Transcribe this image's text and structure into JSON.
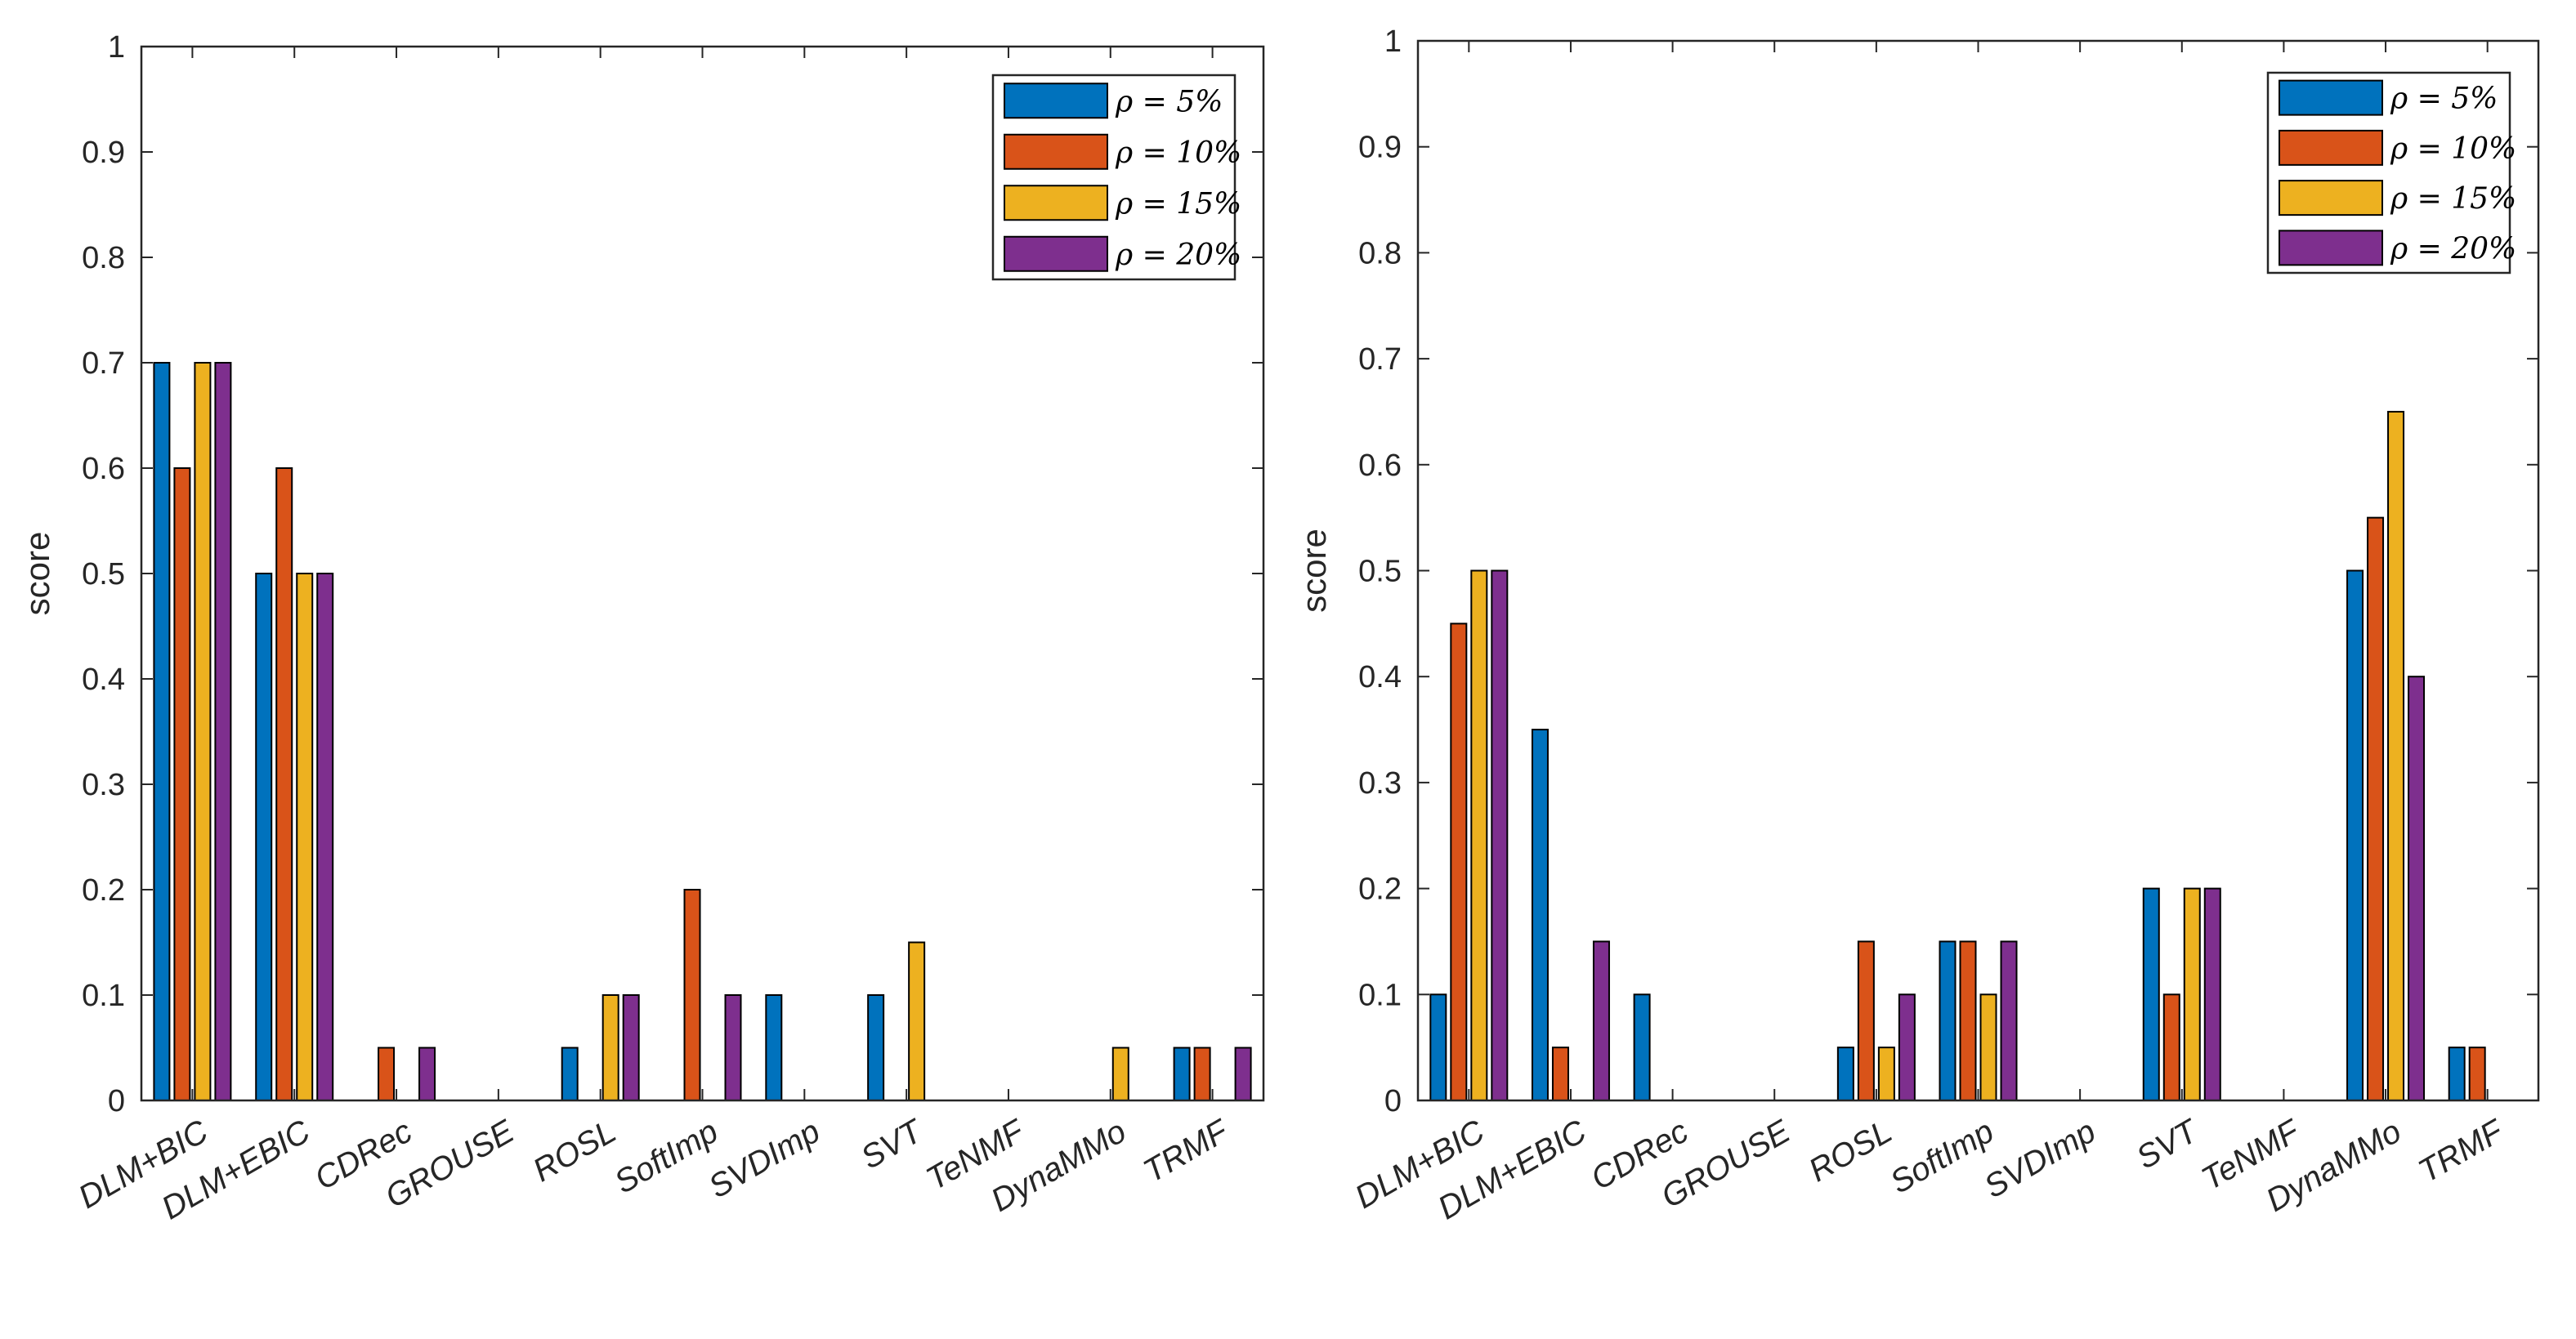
{
  "chart_data": [
    {
      "type": "bar",
      "ylabel": "score",
      "xlabel": "",
      "ylim": [
        0,
        1
      ],
      "yticks": [
        "0",
        "0.1",
        "0.2",
        "0.3",
        "0.4",
        "0.5",
        "0.6",
        "0.7",
        "0.8",
        "0.9",
        "1"
      ],
      "categories": [
        "DLM+BIC",
        "DLM+EBIC",
        "CDRec",
        "GROUSE",
        "ROSL",
        "SoftImp",
        "SVDImp",
        "SVT",
        "TeNMF",
        "DynaMMo",
        "TRMF"
      ],
      "legend_position": "top-right",
      "series": [
        {
          "name": "ρ = 5%",
          "color": "#0072BD",
          "values": [
            0.7,
            0.5,
            0,
            0,
            0.05,
            0,
            0.1,
            0.1,
            0,
            0,
            0.05
          ]
        },
        {
          "name": "ρ = 10%",
          "color": "#D95319",
          "values": [
            0.6,
            0.6,
            0.05,
            0,
            0,
            0.2,
            0,
            0,
            0,
            0,
            0.05
          ]
        },
        {
          "name": "ρ = 15%",
          "color": "#EDB120",
          "values": [
            0.7,
            0.5,
            0,
            0,
            0.1,
            0,
            0,
            0.15,
            0,
            0.05,
            0
          ]
        },
        {
          "name": "ρ = 20%",
          "color": "#7E2F8E",
          "values": [
            0.7,
            0.5,
            0.05,
            0,
            0.1,
            0.1,
            0,
            0,
            0,
            0,
            0.05
          ]
        }
      ]
    },
    {
      "type": "bar",
      "ylabel": "score",
      "xlabel": "",
      "ylim": [
        0,
        1
      ],
      "yticks": [
        "0",
        "0.1",
        "0.2",
        "0.3",
        "0.4",
        "0.5",
        "0.6",
        "0.7",
        "0.8",
        "0.9",
        "1"
      ],
      "categories": [
        "DLM+BIC",
        "DLM+EBIC",
        "CDRec",
        "GROUSE",
        "ROSL",
        "SoftImp",
        "SVDImp",
        "SVT",
        "TeNMF",
        "DynaMMo",
        "TRMF"
      ],
      "legend_position": "top-right",
      "series": [
        {
          "name": "ρ = 5%",
          "color": "#0072BD",
          "values": [
            0.1,
            0.35,
            0.1,
            0,
            0.05,
            0.15,
            0,
            0.2,
            0,
            0.5,
            0.05
          ]
        },
        {
          "name": "ρ = 10%",
          "color": "#D95319",
          "values": [
            0.45,
            0.05,
            0,
            0,
            0.15,
            0.15,
            0,
            0.1,
            0,
            0.55,
            0.05
          ]
        },
        {
          "name": "ρ = 15%",
          "color": "#EDB120",
          "values": [
            0.5,
            0,
            0,
            0,
            0.05,
            0.1,
            0,
            0.2,
            0,
            0.65,
            0
          ]
        },
        {
          "name": "ρ = 20%",
          "color": "#7E2F8E",
          "values": [
            0.5,
            0.15,
            0,
            0,
            0.1,
            0.15,
            0,
            0.2,
            0,
            0.4,
            0
          ]
        }
      ]
    }
  ]
}
